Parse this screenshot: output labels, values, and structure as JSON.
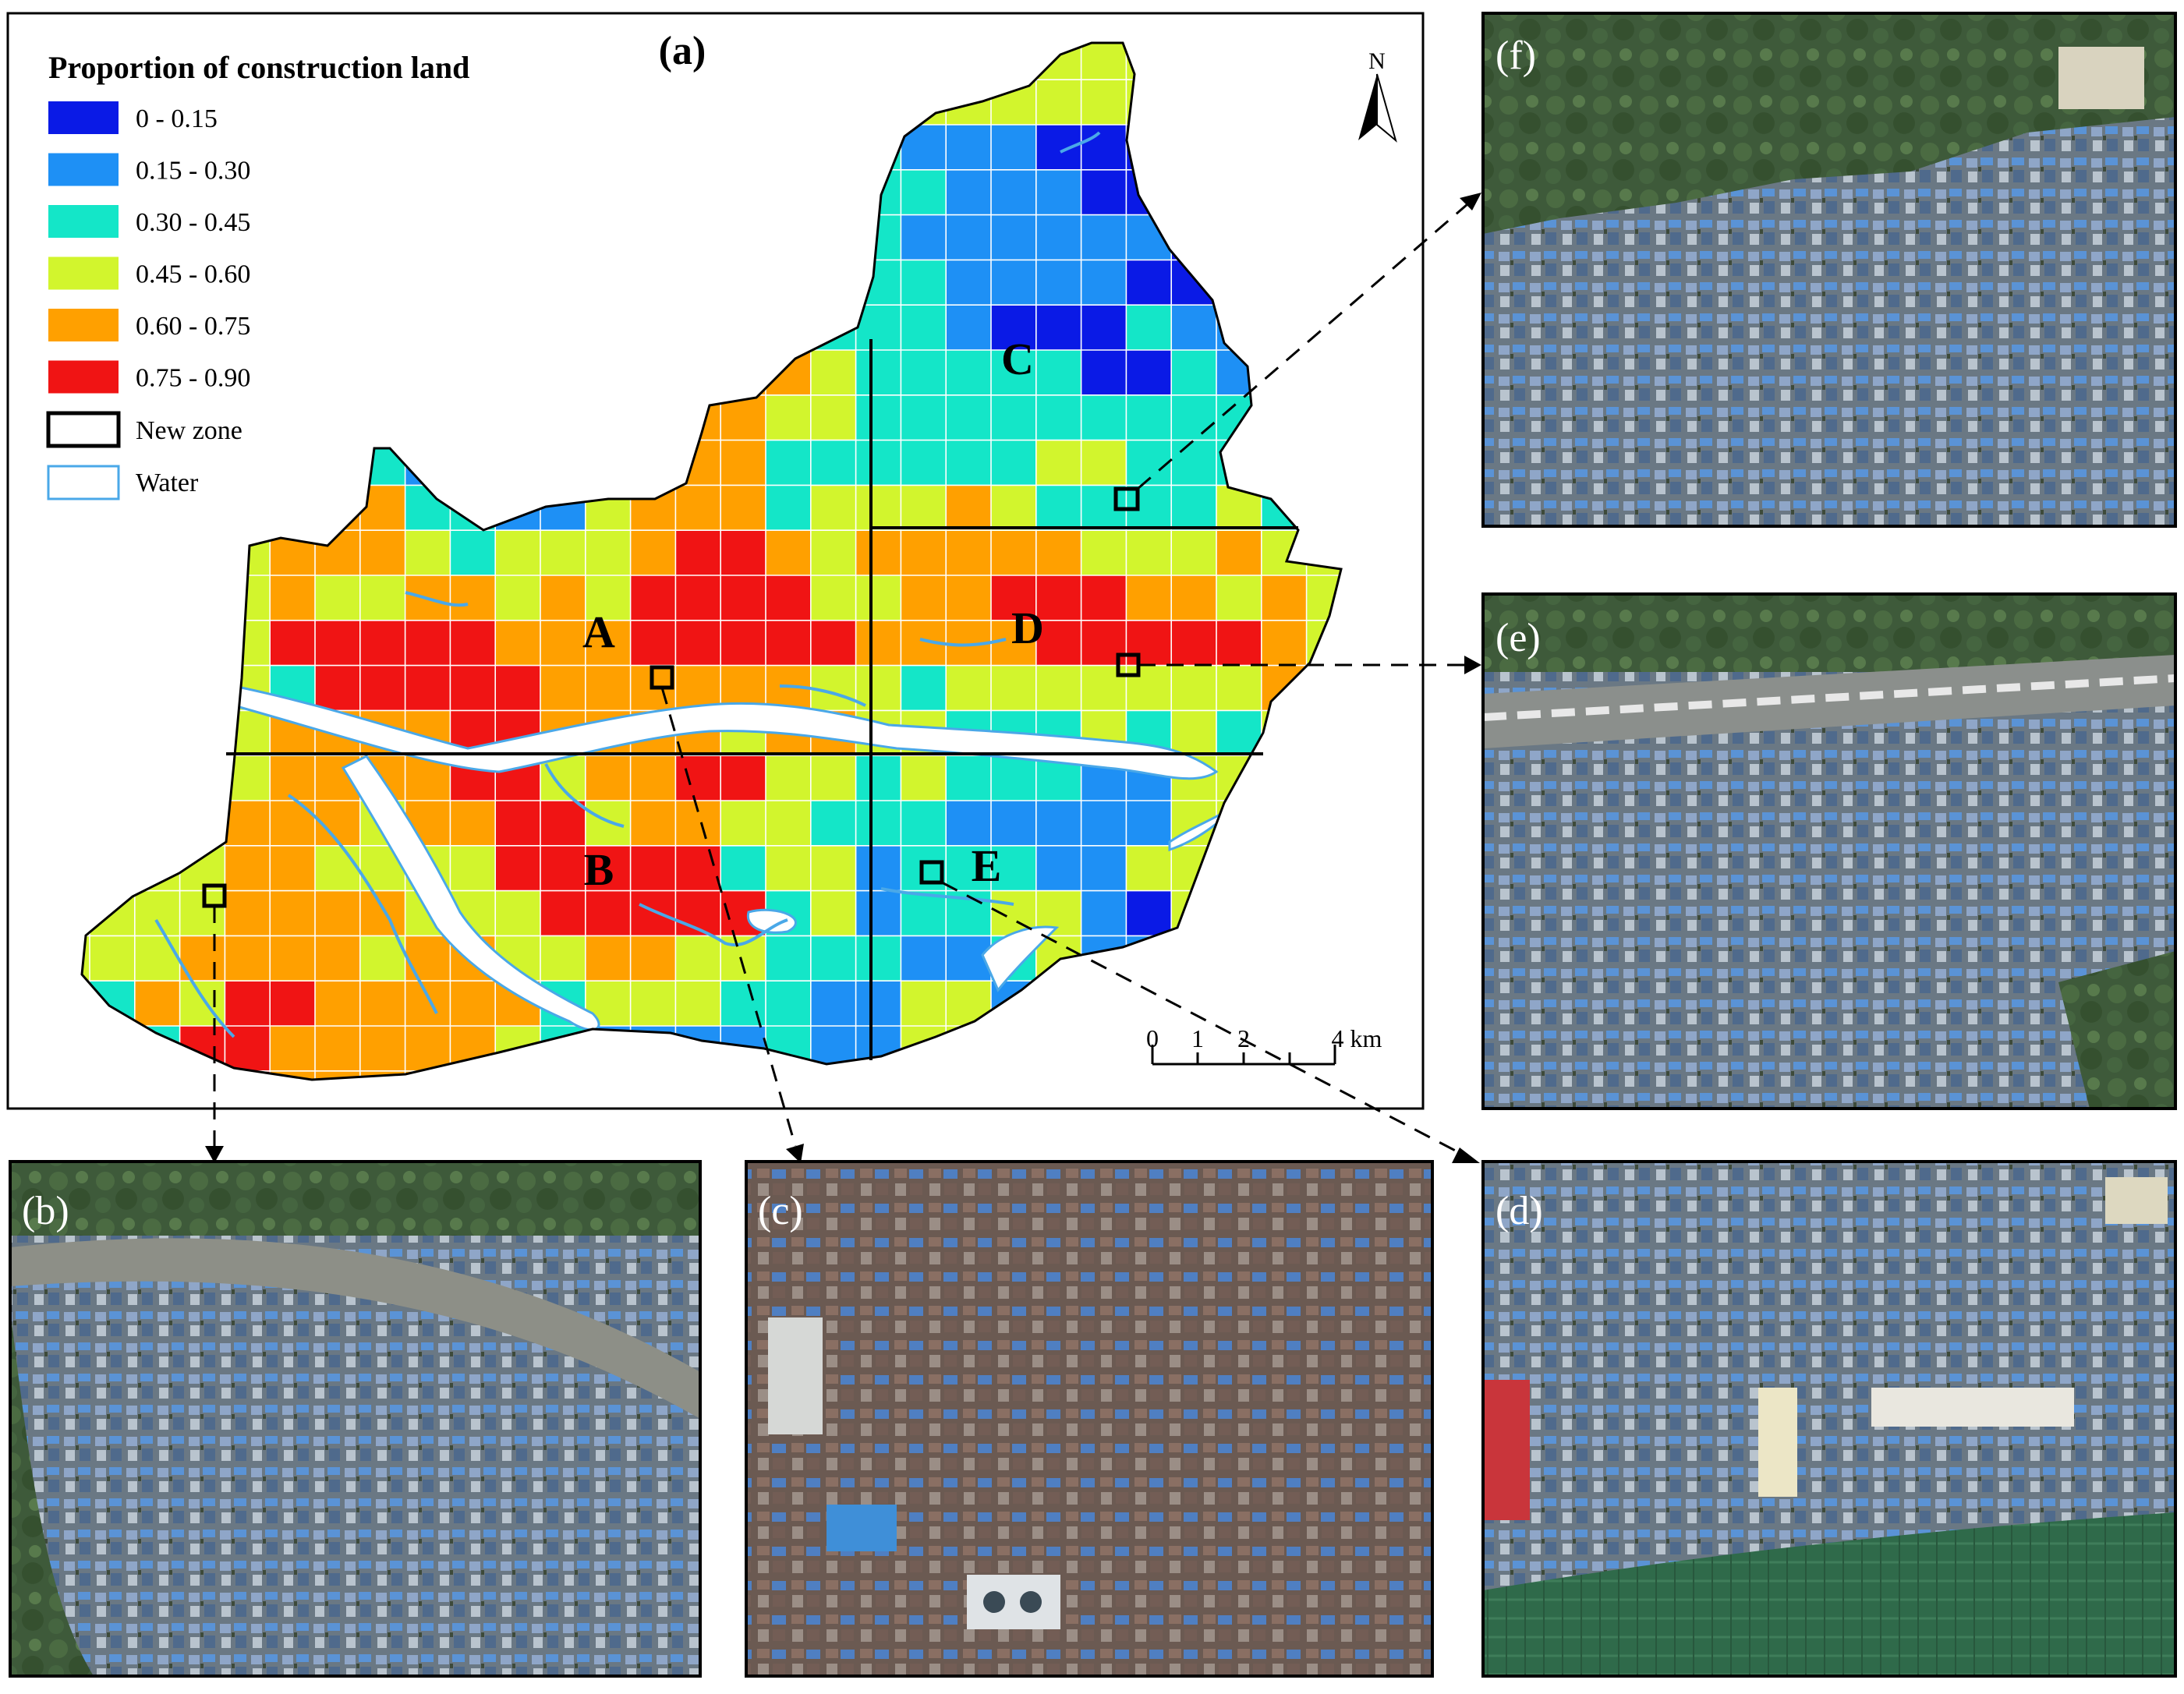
{
  "panel_a": {
    "label": "(a)",
    "legend": {
      "title": "Proportion of construction land",
      "classes": [
        {
          "label": "0 - 0.15",
          "color": "#0a1ae6"
        },
        {
          "label": "0.15 - 0.30",
          "color": "#1e90f5"
        },
        {
          "label": "0.30 - 0.45",
          "color": "#14e6c8"
        },
        {
          "label": "0.45 - 0.60",
          "color": "#d2f52d"
        },
        {
          "label": "0.60 - 0.75",
          "color": "#ffa000"
        },
        {
          "label": "0.75 - 0.90",
          "color": "#f01414"
        }
      ],
      "new_zone_label": "New zone",
      "water_label": "Water"
    },
    "north_arrow": "N",
    "zones": [
      "A",
      "B",
      "C",
      "D",
      "E"
    ],
    "scale_bar": {
      "ticks": [
        "0",
        "1",
        "2",
        "4 km"
      ]
    }
  },
  "insets": [
    {
      "label": "(b)"
    },
    {
      "label": "(c)"
    },
    {
      "label": "(d)"
    },
    {
      "label": "(e)"
    },
    {
      "label": "(f)"
    }
  ],
  "colors": {
    "water": "#ffffff",
    "water_outline": "#4aa8e8",
    "frame": "#000000"
  }
}
